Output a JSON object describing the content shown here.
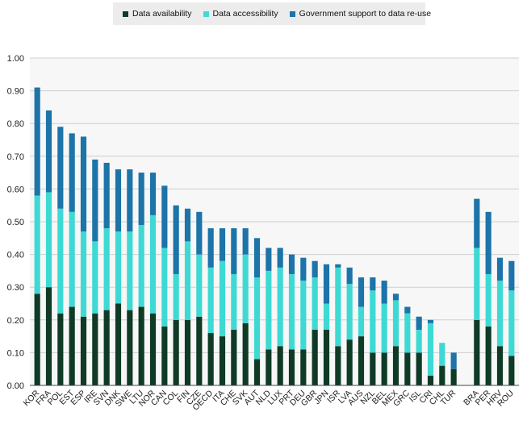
{
  "chart_data": {
    "type": "bar",
    "stacked": true,
    "title": "",
    "xlabel": "",
    "ylabel": "",
    "ylim": [
      0,
      1
    ],
    "yticks": [
      "0.00",
      "0.10",
      "0.20",
      "0.30",
      "0.40",
      "0.50",
      "0.60",
      "0.70",
      "0.80",
      "0.90",
      "1.00"
    ],
    "grid": true,
    "legend_position": "top",
    "categories": [
      "KOR",
      "FRA",
      "POL",
      "EST",
      "ESP",
      "IRE",
      "SVN",
      "DNK",
      "SWE",
      "LTU",
      "NOR",
      "CAN",
      "COL",
      "FIN",
      "CZE",
      "OECD",
      "ITA",
      "CHE",
      "SVK",
      "AUT",
      "NLD",
      "LUX",
      "PRT",
      "DEU",
      "GBR",
      "JPN",
      "ISR",
      "LVA",
      "AUS",
      "NZL",
      "BEL",
      "MEX",
      "GRC",
      "ISL",
      "CRI",
      "CHL",
      "TUR",
      "",
      "BRA",
      "PER",
      "HRV",
      "ROU"
    ],
    "series": [
      {
        "name": "Data availability",
        "color": "#0f3a26",
        "values": [
          0.28,
          0.3,
          0.22,
          0.24,
          0.21,
          0.22,
          0.23,
          0.25,
          0.23,
          0.24,
          0.22,
          0.18,
          0.2,
          0.2,
          0.21,
          0.16,
          0.15,
          0.17,
          0.19,
          0.08,
          0.11,
          0.12,
          0.11,
          0.11,
          0.17,
          0.17,
          0.12,
          0.14,
          0.15,
          0.1,
          0.1,
          0.12,
          0.1,
          0.1,
          0.03,
          0.06,
          0.05,
          null,
          0.2,
          0.18,
          0.12,
          0.09
        ]
      },
      {
        "name": "Data accessibility",
        "color": "#3fd9d4",
        "values": [
          0.3,
          0.29,
          0.32,
          0.29,
          0.26,
          0.22,
          0.25,
          0.22,
          0.24,
          0.25,
          0.3,
          0.24,
          0.14,
          0.24,
          0.19,
          0.2,
          0.23,
          0.17,
          0.21,
          0.25,
          0.24,
          0.24,
          0.23,
          0.21,
          0.16,
          0.08,
          0.24,
          0.17,
          0.09,
          0.19,
          0.15,
          0.14,
          0.12,
          0.07,
          0.16,
          0.07,
          0.0,
          null,
          0.22,
          0.16,
          0.2,
          0.2
        ]
      },
      {
        "name": "Government support to data re-use",
        "color": "#1c74a8",
        "values": [
          0.33,
          0.25,
          0.25,
          0.24,
          0.29,
          0.25,
          0.2,
          0.19,
          0.19,
          0.16,
          0.13,
          0.19,
          0.21,
          0.1,
          0.13,
          0.12,
          0.1,
          0.14,
          0.08,
          0.12,
          0.07,
          0.06,
          0.06,
          0.07,
          0.05,
          0.12,
          0.01,
          0.05,
          0.09,
          0.04,
          0.07,
          0.02,
          0.02,
          0.04,
          0.01,
          0.0,
          0.05,
          null,
          0.15,
          0.19,
          0.07,
          0.09
        ]
      }
    ]
  }
}
